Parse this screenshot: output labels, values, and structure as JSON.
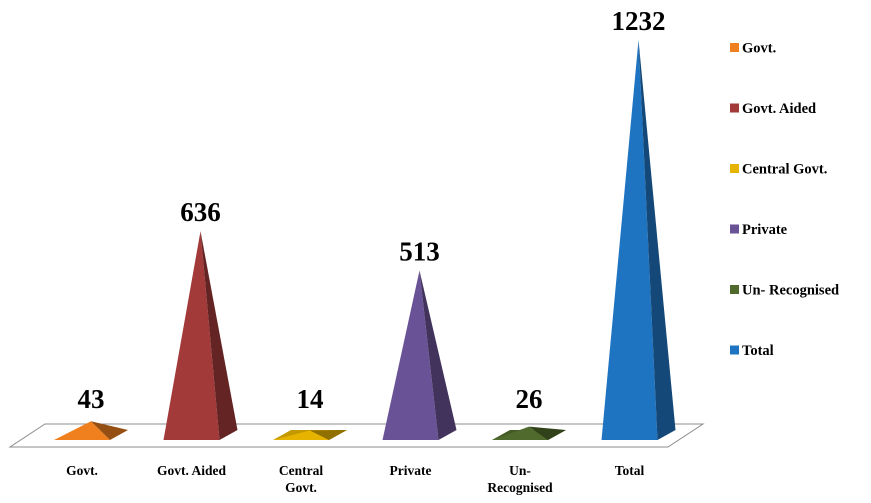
{
  "chart_data": {
    "type": "bar",
    "bar_shape": "pyramid",
    "categories": [
      "Govt.",
      "Govt.  Aided",
      "Central Govt.",
      "Private",
      "Un- Recognised",
      "Total"
    ],
    "tick_labels": [
      [
        "Govt."
      ],
      [
        "Govt.  Aided"
      ],
      [
        "Central",
        "Govt."
      ],
      [
        "Private"
      ],
      [
        "Un-",
        "Recognised"
      ],
      [
        "Total"
      ]
    ],
    "values": [
      43,
      636,
      14,
      513,
      26,
      1232
    ],
    "data_labels": [
      "43",
      "636",
      "14",
      "513",
      "26",
      "1232"
    ],
    "colors": [
      "#F07F1E",
      "#A23A3A",
      "#E6B400",
      "#6A5296",
      "#4F6A2C",
      "#1F74C2"
    ],
    "legend": {
      "position": "right",
      "entries": [
        "Govt.",
        "Govt.  Aided",
        "Central Govt.",
        "Private",
        "Un- Recognised",
        "Total"
      ]
    },
    "ylim": [
      0,
      1232
    ],
    "grid": false,
    "title": "",
    "xlabel": "",
    "ylabel": ""
  }
}
